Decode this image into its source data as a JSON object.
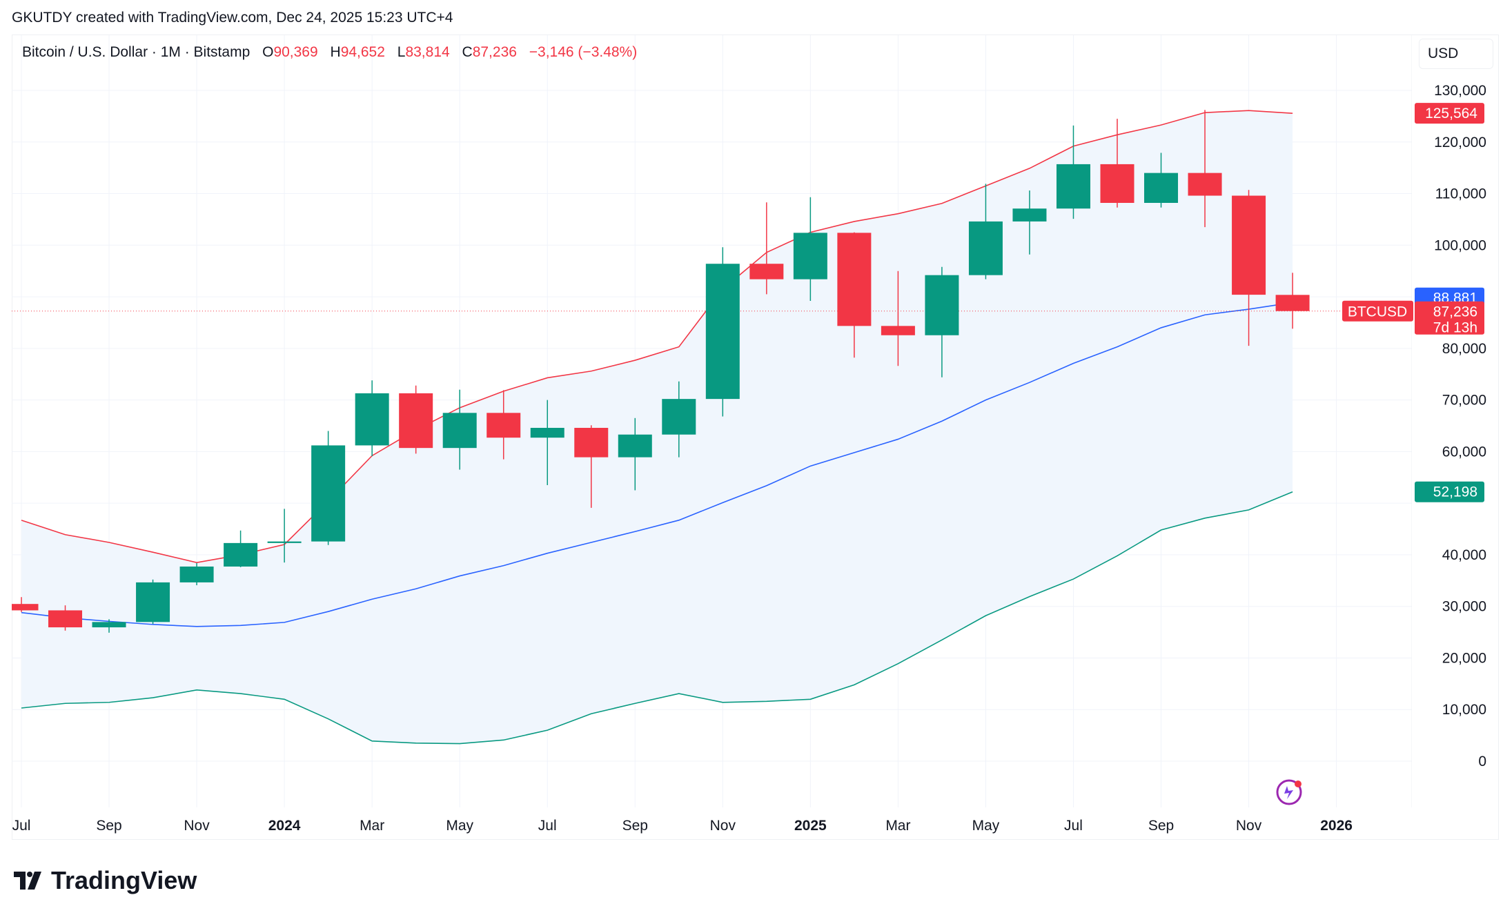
{
  "attribution": "GKUTDY created with TradingView.com, Dec 24, 2025 15:23 UTC+4",
  "legend": {
    "symbol": "Bitcoin / U.S. Dollar · 1M · Bitstamp",
    "o_label": "O",
    "o": "90,369",
    "h_label": "H",
    "h": "94,652",
    "l_label": "L",
    "l": "83,814",
    "c_label": "C",
    "c": "87,236",
    "change": "−3,146 (−3.48%)"
  },
  "currency_button": "USD",
  "logo_text": "TradingView",
  "colors": {
    "up": "#089981",
    "down": "#f23645",
    "basis": "#2962ff",
    "upper": "#f23645",
    "lower": "#089981",
    "band_fill": "#f0f6fd"
  },
  "chart_data": {
    "type": "candlestick",
    "indicator": "Bollinger Bands",
    "ylim": [
      0,
      130000
    ],
    "yticks": [
      "0",
      "10,000",
      "20,000",
      "30,000",
      "40,000",
      "50,000",
      "60,000",
      "70,000",
      "80,000",
      "90,000",
      "100,000",
      "110,000",
      "120,000",
      "130,000"
    ],
    "ytick_values": [
      0,
      10000,
      20000,
      30000,
      40000,
      50000,
      60000,
      70000,
      80000,
      90000,
      100000,
      110000,
      120000,
      130000
    ],
    "xtick_labels": [
      "Jul",
      "Sep",
      "Nov",
      "2024",
      "Mar",
      "May",
      "Jul",
      "Sep",
      "Nov",
      "2025",
      "Mar",
      "May",
      "Jul",
      "Sep",
      "Nov",
      "2026"
    ],
    "grid": true,
    "months": [
      "2023-07",
      "2023-08",
      "2023-09",
      "2023-10",
      "2023-11",
      "2023-12",
      "2024-01",
      "2024-02",
      "2024-03",
      "2024-04",
      "2024-05",
      "2024-06",
      "2024-07",
      "2024-08",
      "2024-09",
      "2024-10",
      "2024-11",
      "2024-12",
      "2025-01",
      "2025-02",
      "2025-03",
      "2025-04",
      "2025-05",
      "2025-06",
      "2025-07",
      "2025-08",
      "2025-09",
      "2025-10",
      "2025-11",
      "2025-12"
    ],
    "ohlc": [
      [
        30470,
        31800,
        28900,
        29230
      ],
      [
        29230,
        30200,
        25300,
        25940
      ],
      [
        25940,
        27500,
        24900,
        26970
      ],
      [
        26970,
        35200,
        26600,
        34650
      ],
      [
        34650,
        38400,
        34100,
        37720
      ],
      [
        37720,
        44700,
        37600,
        42280
      ],
      [
        42280,
        48900,
        38500,
        42580
      ],
      [
        42580,
        64000,
        41900,
        61200
      ],
      [
        61200,
        73800,
        59100,
        71300
      ],
      [
        71300,
        72800,
        59600,
        60700
      ],
      [
        60700,
        72000,
        56500,
        67500
      ],
      [
        67500,
        71900,
        58500,
        62700
      ],
      [
        62700,
        70000,
        53500,
        64600
      ],
      [
        64600,
        65100,
        49100,
        58900
      ],
      [
        58900,
        66500,
        52500,
        63300
      ],
      [
        63300,
        73600,
        58900,
        70200
      ],
      [
        70200,
        99600,
        66800,
        96400
      ],
      [
        96400,
        108300,
        90500,
        93400
      ],
      [
        93400,
        109300,
        89200,
        102400
      ],
      [
        102400,
        102500,
        78200,
        84350
      ],
      [
        84350,
        95000,
        76600,
        82550
      ],
      [
        82550,
        95800,
        74400,
        94200
      ],
      [
        94200,
        111900,
        93400,
        104600
      ],
      [
        104600,
        110600,
        98200,
        107100
      ],
      [
        107100,
        123200,
        105100,
        115700
      ],
      [
        115700,
        124500,
        107300,
        108200
      ],
      [
        108200,
        117900,
        107300,
        114000
      ],
      [
        114000,
        126200,
        103500,
        109600
      ],
      [
        109600,
        110700,
        80500,
        90400
      ],
      [
        90369,
        94652,
        83814,
        87236
      ]
    ],
    "bb_upper": [
      46700,
      43900,
      42400,
      40500,
      38500,
      40000,
      42000,
      50400,
      59200,
      64200,
      68500,
      71700,
      74300,
      75600,
      77700,
      80300,
      91500,
      98600,
      102500,
      104600,
      106100,
      108100,
      111500,
      114900,
      119200,
      121400,
      123300,
      125700,
      126100,
      125564
    ],
    "bb_basis": [
      28800,
      27800,
      27100,
      26500,
      26100,
      26300,
      26900,
      29000,
      31400,
      33400,
      35900,
      37900,
      40300,
      42400,
      44500,
      46700,
      50100,
      53400,
      57200,
      59800,
      62400,
      65900,
      70000,
      73400,
      77100,
      80300,
      84000,
      86500,
      87600,
      88881
    ],
    "bb_lower": [
      10300,
      11200,
      11400,
      12300,
      13800,
      13100,
      12000,
      8200,
      3900,
      3500,
      3400,
      4100,
      6000,
      9200,
      11200,
      13100,
      11400,
      11600,
      12000,
      14800,
      18900,
      23500,
      28200,
      31900,
      35300,
      39800,
      44800,
      47100,
      48700,
      52198
    ],
    "last_price": 87236,
    "price_labels": {
      "upper": "125,564",
      "basis": "88,881",
      "last": "87,236",
      "countdown": "7d 13h",
      "symbol": "BTCUSD",
      "lower": "52,198"
    }
  }
}
